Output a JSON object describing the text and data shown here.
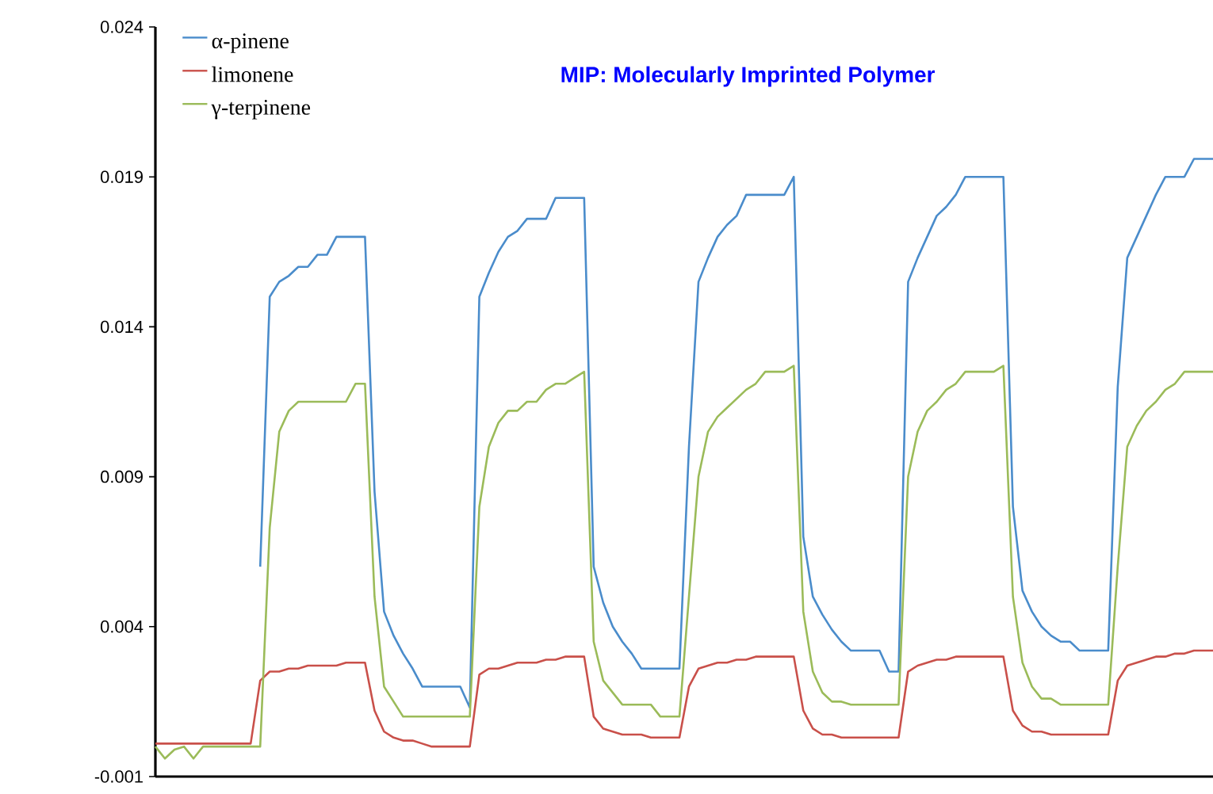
{
  "chart_data": {
    "type": "line",
    "categories": [
      null,
      null,
      null,
      null,
      null,
      null,
      null,
      null,
      null,
      null,
      null,
      null,
      null,
      null,
      null,
      null,
      null,
      null,
      null,
      null,
      null,
      null,
      null,
      null,
      null,
      null,
      null,
      null,
      null,
      null,
      null,
      null,
      null,
      null,
      null,
      null,
      null,
      null,
      null,
      null,
      null,
      null,
      null,
      null,
      null,
      null,
      null,
      null,
      null,
      null,
      null,
      null,
      null,
      null,
      null,
      null,
      null,
      null,
      null,
      null,
      null,
      null,
      null,
      null,
      null,
      null,
      null,
      null,
      null,
      null,
      null,
      null,
      null,
      null,
      null,
      null,
      null,
      null,
      null,
      null,
      null,
      null,
      null,
      null,
      null,
      null,
      null,
      null,
      null,
      null,
      null,
      null,
      null,
      null,
      null,
      null,
      null,
      null,
      null,
      null,
      null,
      null,
      null,
      null,
      null,
      null,
      null,
      null,
      null,
      null,
      null,
      null
    ],
    "series": [
      {
        "name": "α-pinene",
        "color": "#4a8ccb",
        "values": [
          null,
          null,
          null,
          null,
          null,
          null,
          null,
          null,
          null,
          null,
          null,
          0.006,
          0.015,
          0.0155,
          0.0157,
          0.016,
          0.016,
          0.0164,
          0.0164,
          0.017,
          0.017,
          0.017,
          0.017,
          0.0085,
          0.0045,
          0.0037,
          0.0031,
          0.0026,
          0.002,
          0.002,
          0.002,
          0.002,
          0.002,
          0.0013,
          0.015,
          0.0158,
          0.0165,
          0.017,
          0.0172,
          0.0176,
          0.0176,
          0.0176,
          0.0183,
          0.0183,
          0.0183,
          0.0183,
          0.006,
          0.0048,
          0.004,
          0.0035,
          0.0031,
          0.0026,
          0.0026,
          0.0026,
          0.0026,
          0.0026,
          0.01,
          0.0155,
          0.0163,
          0.017,
          0.0174,
          0.0177,
          0.0184,
          0.0184,
          0.0184,
          0.0184,
          0.0184,
          0.019,
          0.007,
          0.005,
          0.0044,
          0.0039,
          0.0035,
          0.0032,
          0.0032,
          0.0032,
          0.0032,
          0.0025,
          0.0025,
          0.0155,
          0.0163,
          0.017,
          0.0177,
          0.018,
          0.0184,
          0.019,
          0.019,
          0.019,
          0.019,
          0.019,
          0.008,
          0.0052,
          0.0045,
          0.004,
          0.0037,
          0.0035,
          0.0035,
          0.0032,
          0.0032,
          0.0032,
          0.0032,
          0.012,
          0.0163,
          0.017,
          0.0177,
          0.0184,
          0.019,
          0.019,
          0.019,
          0.0196,
          0.0196,
          0.0196
        ]
      },
      {
        "name": "limonene",
        "color": "#c9504a",
        "values": [
          0.0001,
          0.0001,
          0.0001,
          0.0001,
          0.0001,
          0.0001,
          0.0001,
          0.0001,
          0.0001,
          0.0001,
          0.0001,
          0.0022,
          0.0025,
          0.0025,
          0.0026,
          0.0026,
          0.0027,
          0.0027,
          0.0027,
          0.0027,
          0.0028,
          0.0028,
          0.0028,
          0.0012,
          0.0005,
          0.0003,
          0.0002,
          0.0002,
          0.0001,
          0.0,
          0.0,
          0.0,
          0.0,
          0.0,
          0.0024,
          0.0026,
          0.0026,
          0.0027,
          0.0028,
          0.0028,
          0.0028,
          0.0029,
          0.0029,
          0.003,
          0.003,
          0.003,
          0.001,
          0.0006,
          0.0005,
          0.0004,
          0.0004,
          0.0004,
          0.0003,
          0.0003,
          0.0003,
          0.0003,
          0.002,
          0.0026,
          0.0027,
          0.0028,
          0.0028,
          0.0029,
          0.0029,
          0.003,
          0.003,
          0.003,
          0.003,
          0.003,
          0.0012,
          0.0006,
          0.0004,
          0.0004,
          0.0003,
          0.0003,
          0.0003,
          0.0003,
          0.0003,
          0.0003,
          0.0003,
          0.0025,
          0.0027,
          0.0028,
          0.0029,
          0.0029,
          0.003,
          0.003,
          0.003,
          0.003,
          0.003,
          0.003,
          0.0012,
          0.0007,
          0.0005,
          0.0005,
          0.0004,
          0.0004,
          0.0004,
          0.0004,
          0.0004,
          0.0004,
          0.0004,
          0.0022,
          0.0027,
          0.0028,
          0.0029,
          0.003,
          0.003,
          0.0031,
          0.0031,
          0.0032,
          0.0032,
          0.0032
        ]
      },
      {
        "name": "γ-terpinene",
        "color": "#9bbb59",
        "values": [
          0.0,
          -0.0004,
          -0.0001,
          0.0,
          -0.0004,
          0.0,
          0.0,
          0.0,
          0.0,
          0.0,
          0.0,
          0.0,
          0.0073,
          0.0105,
          0.0112,
          0.0115,
          0.0115,
          0.0115,
          0.0115,
          0.0115,
          0.0115,
          0.0121,
          0.0121,
          0.005,
          0.002,
          0.0015,
          0.001,
          0.001,
          0.001,
          0.001,
          0.001,
          0.001,
          0.001,
          0.001,
          0.008,
          0.01,
          0.0108,
          0.0112,
          0.0112,
          0.0115,
          0.0115,
          0.0119,
          0.0121,
          0.0121,
          0.0123,
          0.0125,
          0.0035,
          0.0022,
          0.0018,
          0.0014,
          0.0014,
          0.0014,
          0.0014,
          0.001,
          0.001,
          0.001,
          0.005,
          0.009,
          0.0105,
          0.011,
          0.0113,
          0.0116,
          0.0119,
          0.0121,
          0.0125,
          0.0125,
          0.0125,
          0.0127,
          0.0045,
          0.0025,
          0.0018,
          0.0015,
          0.0015,
          0.0014,
          0.0014,
          0.0014,
          0.0014,
          0.0014,
          0.0014,
          0.009,
          0.0105,
          0.0112,
          0.0115,
          0.0119,
          0.0121,
          0.0125,
          0.0125,
          0.0125,
          0.0125,
          0.0127,
          0.005,
          0.0028,
          0.002,
          0.0016,
          0.0016,
          0.0014,
          0.0014,
          0.0014,
          0.0014,
          0.0014,
          0.0014,
          0.006,
          0.01,
          0.0107,
          0.0112,
          0.0115,
          0.0119,
          0.0121,
          0.0125,
          0.0125,
          0.0125,
          0.0125
        ]
      }
    ],
    "ylim": [
      -0.001,
      0.024
    ],
    "yticks": [
      -0.001,
      0.004,
      0.009,
      0.014,
      0.019,
      0.024
    ],
    "tick_labels": "y",
    "grid": false,
    "legend": "top left",
    "annotations": [
      "MIP: Molecularly Imprinted Polymer"
    ]
  }
}
